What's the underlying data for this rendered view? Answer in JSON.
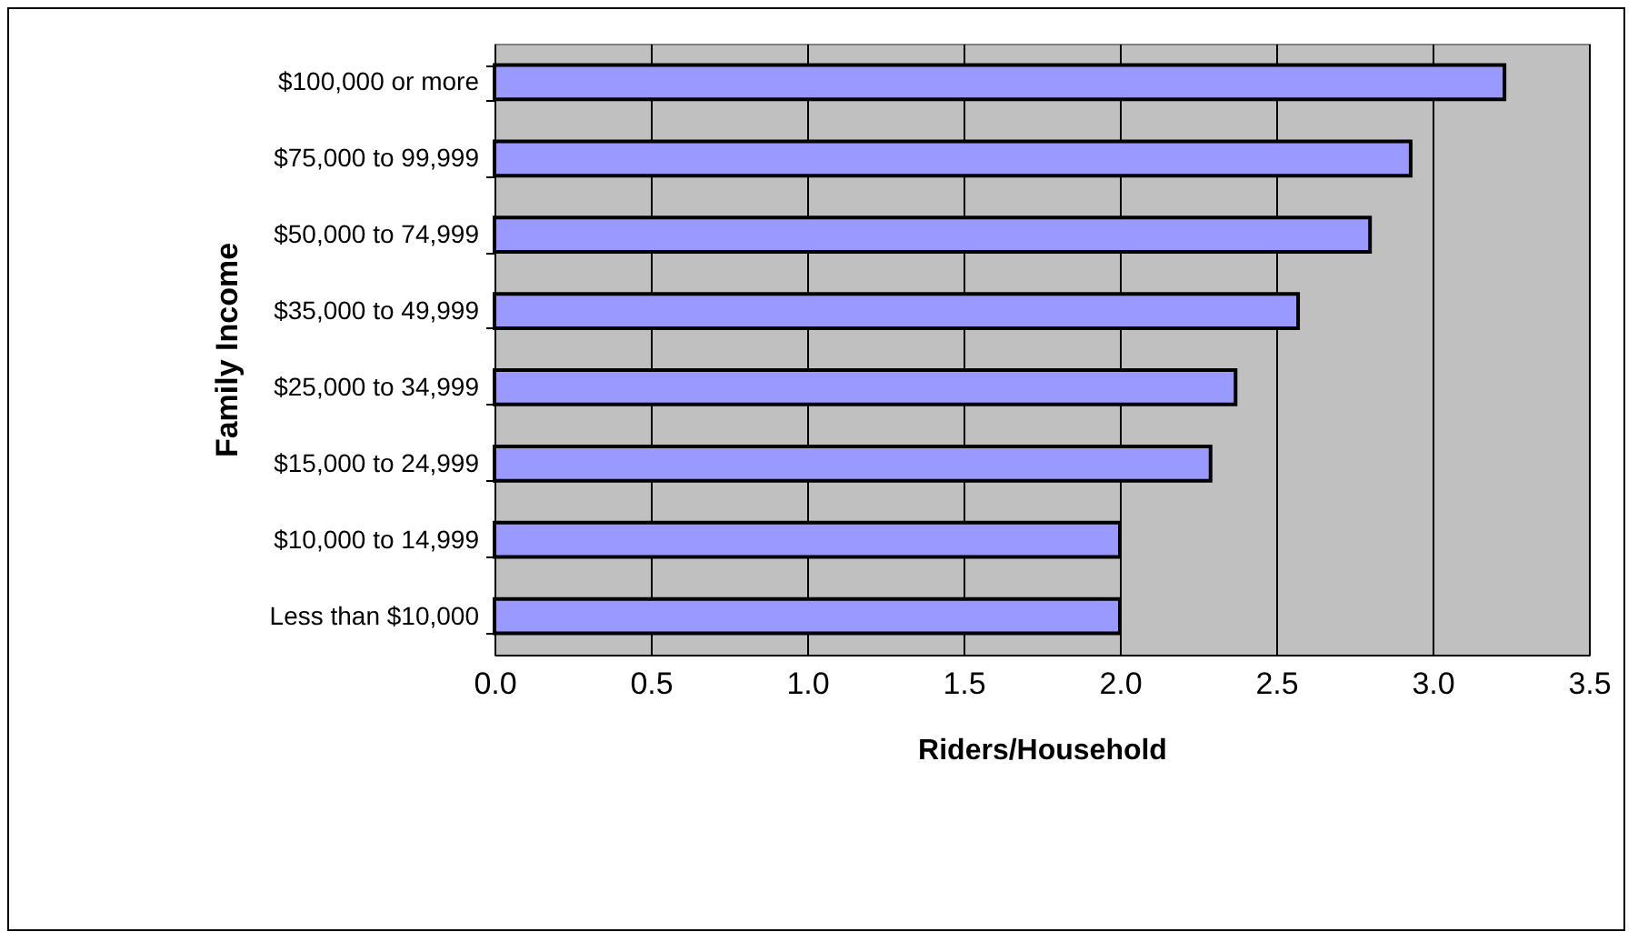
{
  "chart_data": {
    "type": "bar",
    "orientation": "horizontal",
    "xlabel": "Riders/Household",
    "ylabel": "Family Income",
    "categories": [
      "$100,000 or more",
      "$75,000 to 99,999",
      "$50,000 to 74,999",
      "$35,000 to 49,999",
      "$25,000 to 34,999",
      "$15,000 to 24,999",
      "$10,000 to 14,999",
      "Less than $10,000"
    ],
    "values": [
      3.23,
      2.93,
      2.8,
      2.57,
      2.37,
      2.29,
      2.0,
      2.0
    ],
    "color": "#9999ff",
    "xlim": [
      0,
      3.5
    ],
    "xticks": [
      {
        "value": 0,
        "label": "0.0"
      },
      {
        "value": 0.5,
        "label": "0.5"
      },
      {
        "value": 1,
        "label": "1.0"
      },
      {
        "value": 1.5,
        "label": "1.5"
      },
      {
        "value": 2,
        "label": "2.0"
      },
      {
        "value": 2.5,
        "label": "2.5"
      },
      {
        "value": 3,
        "label": "3.0"
      },
      {
        "value": 3.5,
        "label": "3.5"
      }
    ],
    "grid": "x"
  }
}
